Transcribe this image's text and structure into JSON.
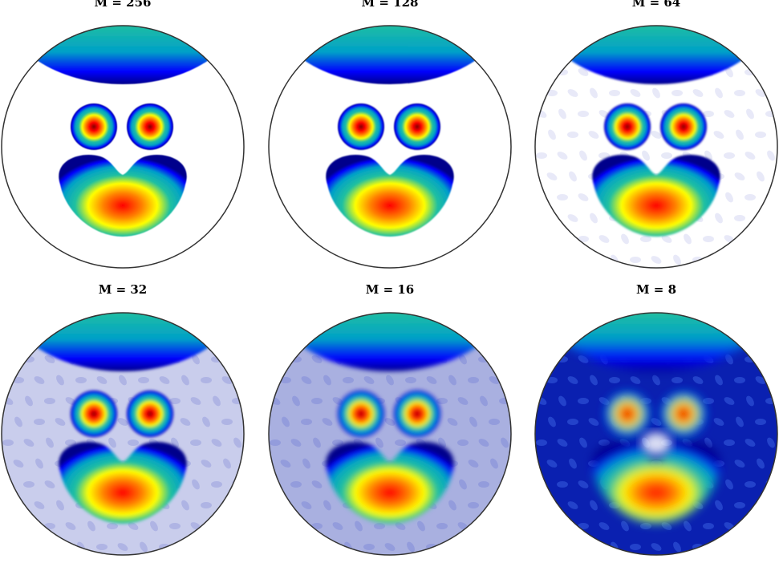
{
  "panels": [
    {
      "title": "M = 256",
      "background": "#ffffff",
      "ripple": "none",
      "blur": 0.6
    },
    {
      "title": "M = 128",
      "background": "#ffffff",
      "ripple": "none",
      "blur": 0.8
    },
    {
      "title": "M = 64",
      "background": "#ffffff",
      "ripple": "faint",
      "blur": 1.2
    },
    {
      "title": "M = 32",
      "background": "#c9cdec",
      "ripple": "light",
      "blur": 1.8
    },
    {
      "title": "M = 16",
      "background": "#a9b0e0",
      "ripple": "medium",
      "blur": 3
    },
    {
      "title": "M = 8",
      "background": "#0a20b0",
      "ripple": "strong",
      "blur": 6
    }
  ],
  "colors": {
    "colormap": [
      "#00008b",
      "#0000ff",
      "#00a0c8",
      "#20c0a0",
      "#ffff00",
      "#ff8000",
      "#ff0000",
      "#800000"
    ],
    "outline": "#333333"
  }
}
